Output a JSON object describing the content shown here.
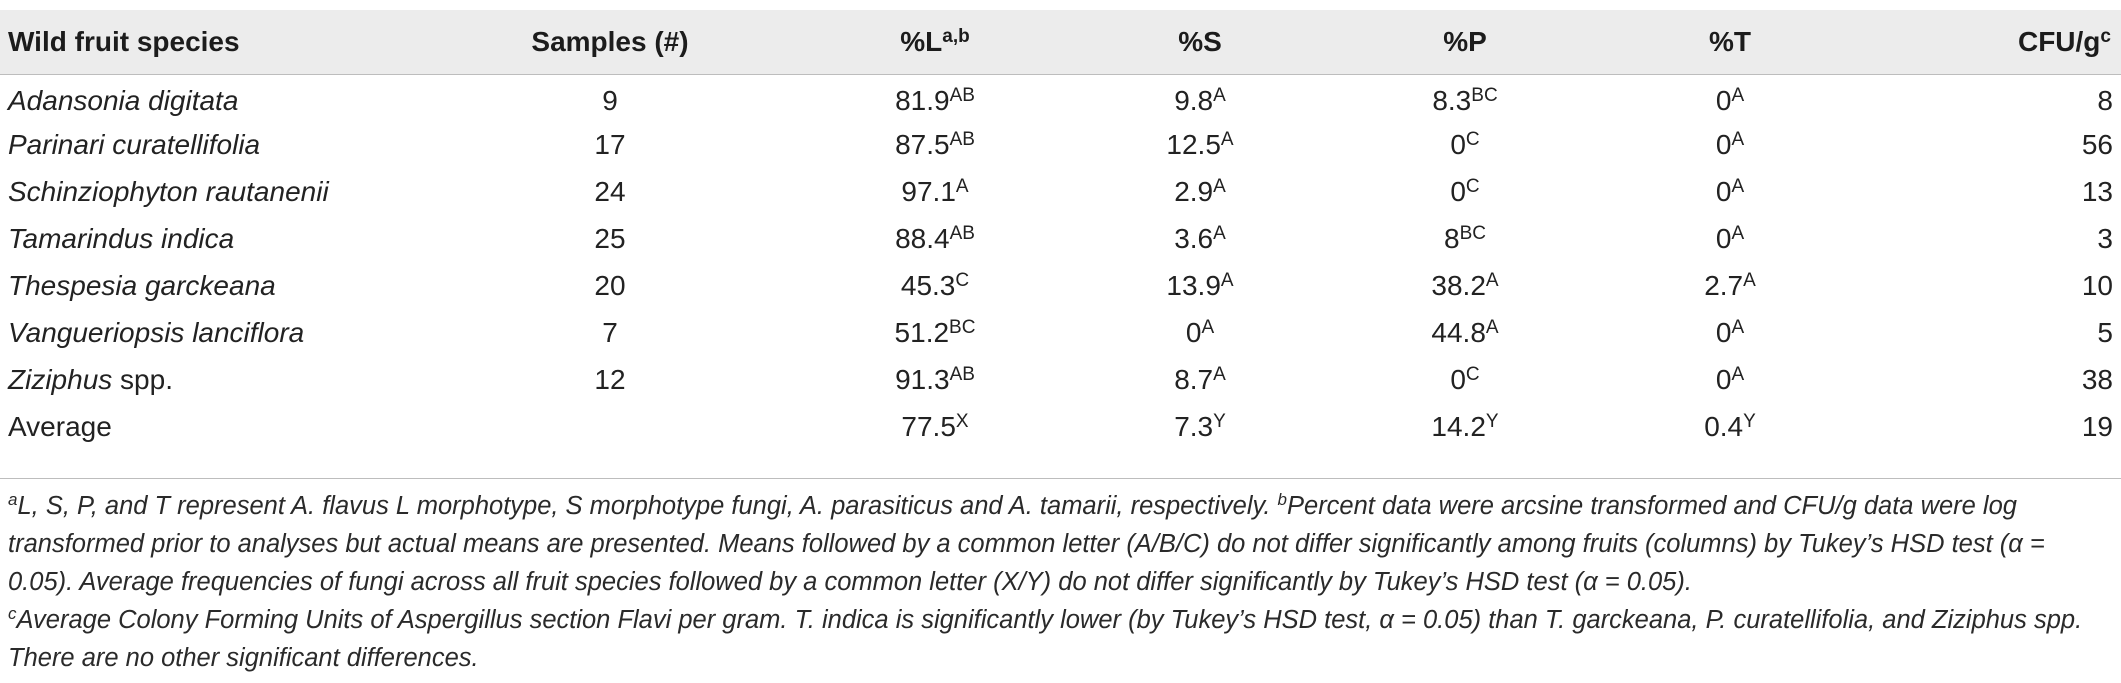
{
  "table": {
    "headers": [
      {
        "text": "Wild fruit species",
        "sup": ""
      },
      {
        "text": "Samples (#)",
        "sup": ""
      },
      {
        "text": "%L",
        "sup": "a,b"
      },
      {
        "text": "%S",
        "sup": ""
      },
      {
        "text": "%P",
        "sup": ""
      },
      {
        "text": "%T",
        "sup": ""
      },
      {
        "text": "CFU/g",
        "sup": "c"
      }
    ],
    "rows": [
      {
        "species": "Adansonia digitata",
        "samples": "9",
        "L": "81.9",
        "L_sup": "AB",
        "S": "9.8",
        "S_sup": "A",
        "P": "8.3",
        "P_sup": "BC",
        "T": "0",
        "T_sup": "A",
        "cfu": "8"
      },
      {
        "species": "Parinari curatellifolia",
        "samples": "17",
        "L": "87.5",
        "L_sup": "AB",
        "S": "12.5",
        "S_sup": "A",
        "P": "0",
        "P_sup": "C",
        "T": "0",
        "T_sup": "A",
        "cfu": "56"
      },
      {
        "species": "Schinziophyton rautanenii",
        "samples": "24",
        "L": "97.1",
        "L_sup": "A",
        "S": "2.9",
        "S_sup": "A",
        "P": "0",
        "P_sup": "C",
        "T": "0",
        "T_sup": "A",
        "cfu": "13"
      },
      {
        "species": "Tamarindus indica",
        "samples": "25",
        "L": "88.4",
        "L_sup": "AB",
        "S": "3.6",
        "S_sup": "A",
        "P": "8",
        "P_sup": "BC",
        "T": "0",
        "T_sup": "A",
        "cfu": "3"
      },
      {
        "species": "Thespesia garckeana",
        "samples": "20",
        "L": "45.3",
        "L_sup": "C",
        "S": "13.9",
        "S_sup": "A",
        "P": "38.2",
        "P_sup": "A",
        "T": "2.7",
        "T_sup": "A",
        "cfu": "10"
      },
      {
        "species": "Vangueriopsis lanciflora",
        "samples": "7",
        "L": "51.2",
        "L_sup": "BC",
        "S": "0",
        "S_sup": "A",
        "P": "44.8",
        "P_sup": "A",
        "T": "0",
        "T_sup": "A",
        "cfu": "5"
      },
      {
        "species": "Ziziphus",
        "species_suffix": " spp.",
        "samples": "12",
        "L": "91.3",
        "L_sup": "AB",
        "S": "8.7",
        "S_sup": "A",
        "P": "0",
        "P_sup": "C",
        "T": "0",
        "T_sup": "A",
        "cfu": "38"
      }
    ],
    "average": {
      "label": "Average",
      "samples": "",
      "L": "77.5",
      "L_sup": "X",
      "S": "7.3",
      "S_sup": "Y",
      "P": "14.2",
      "P_sup": "Y",
      "T": "0.4",
      "T_sup": "Y",
      "cfu": "19"
    }
  },
  "footnotes": {
    "a_mark": "a",
    "a_text": "L, S, P, and T represent A. flavus L morphotype, S morphotype fungi, A. parasiticus and A. tamarii, respectively.",
    "b_mark": "b",
    "b_text": "Percent data were arcsine transformed and CFU/g data were log transformed prior to analyses but actual means are presented. Means followed by a common letter (A/B/C) do not differ significantly among fruits (columns) by Tukey’s HSD test (α = 0.05). Average frequencies of fungi across all fruit species followed by a common letter (X/Y) do not differ significantly by Tukey’s HSD test (α = 0.05).",
    "c_mark": "c",
    "c_text": "Average Colony Forming Units of Aspergillus section Flavi per gram. T. indica is significantly lower (by Tukey’s HSD test, α = 0.05) than T. garckeana, P. curatellifolia, and Ziziphus spp. There are no other significant differences."
  }
}
